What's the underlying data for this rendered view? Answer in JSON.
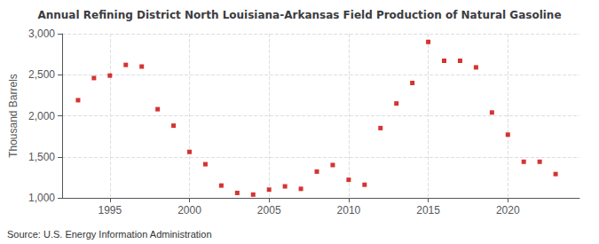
{
  "chart_data": {
    "type": "scatter",
    "title": "Annual Refining District North Louisiana-Arkansas Field Production of Natural Gasoline",
    "ylabel": "Thousand Barrels",
    "source": "Source: U.S. Energy Information Administration",
    "color": "#cc0000",
    "marker": "square",
    "x": [
      1993,
      1994,
      1995,
      1996,
      1997,
      1998,
      1999,
      2000,
      2001,
      2002,
      2003,
      2004,
      2005,
      2006,
      2007,
      2008,
      2009,
      2010,
      2011,
      2012,
      2013,
      2014,
      2015,
      2016,
      2017,
      2018,
      2019,
      2020,
      2021,
      2022,
      2023
    ],
    "values": [
      2190,
      2460,
      2490,
      2620,
      2600,
      2080,
      1880,
      1560,
      1410,
      1150,
      1060,
      1040,
      1100,
      1140,
      1110,
      1320,
      1400,
      1220,
      1160,
      1850,
      2150,
      2400,
      2900,
      2670,
      2670,
      2590,
      2040,
      1770,
      1440,
      1440,
      1290
    ],
    "xlim": [
      1992.0,
      2024.5
    ],
    "xticks": [
      1995,
      2000,
      2005,
      2010,
      2015,
      2020
    ],
    "ylim": [
      1000,
      3000
    ],
    "yticks": [
      {
        "value": 1000,
        "label": "1,000"
      },
      {
        "value": 1500,
        "label": "1,500"
      },
      {
        "value": 2000,
        "label": "2,000"
      },
      {
        "value": 2500,
        "label": "2,500"
      },
      {
        "value": 3000,
        "label": "3,000"
      }
    ],
    "grid": true
  }
}
